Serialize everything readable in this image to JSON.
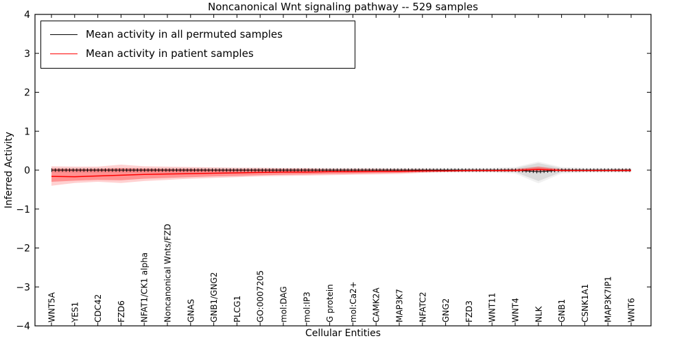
{
  "title": "Noncanonical Wnt signaling pathway -- 529 samples",
  "axes": {
    "xlabel": "Cellular Entities",
    "ylabel": "Inferred Activity",
    "ylim": [
      -4,
      4
    ],
    "yticks": [
      {
        "v": 4,
        "label": "4"
      },
      {
        "v": 3,
        "label": "3"
      },
      {
        "v": 2,
        "label": "2"
      },
      {
        "v": 1,
        "label": "1"
      },
      {
        "v": 0,
        "label": "0"
      },
      {
        "v": -1,
        "label": "−1"
      },
      {
        "v": -2,
        "label": "−2"
      },
      {
        "v": -3,
        "label": "−3"
      },
      {
        "v": -4,
        "label": "−4"
      }
    ]
  },
  "legend": {
    "items": [
      {
        "label": "Mean activity in all permuted samples",
        "color": "#000000"
      },
      {
        "label": "Mean activity in patient samples",
        "color": "#ff0000"
      }
    ]
  },
  "chart_data": {
    "type": "line",
    "title": "Noncanonical Wnt signaling pathway -- 529 samples",
    "xlabel": "Cellular Entities",
    "ylabel": "Inferred Activity",
    "ylim": [
      -4,
      4
    ],
    "grid": false,
    "legend_position": "upper-left",
    "categories": [
      "WNT5A",
      "YES1",
      "CDC42",
      "FZD6",
      "NFAT1/CK1 alpha",
      "Noncanonical Wnts/FZD",
      "GNAS",
      "GNB1/GNG2",
      "PLCG1",
      "GO:0007205",
      "mol:DAG",
      "mol:IP3",
      "G protein",
      "mol:Ca2+",
      "CAMK2A",
      "MAP3K7",
      "NFATC2",
      "GNG2",
      "FZD3",
      "WNT11",
      "WNT4",
      "NLK",
      "GNB1",
      "CSNK1A1",
      "MAP3K7IP1",
      "WNT6"
    ],
    "series": [
      {
        "name": "Mean activity in all permuted samples",
        "color": "#000000",
        "values": [
          0,
          0,
          0,
          0,
          0,
          0,
          0,
          0,
          0,
          0,
          0,
          0,
          0,
          0,
          0,
          0,
          0,
          0,
          0,
          0,
          0,
          -0.04,
          0,
          0,
          0,
          0
        ]
      },
      {
        "name": "Mean activity in patient samples",
        "color": "#ff0000",
        "values": [
          -0.16,
          -0.17,
          -0.15,
          -0.13,
          -0.11,
          -0.1,
          -0.09,
          -0.08,
          -0.07,
          -0.06,
          -0.05,
          -0.05,
          -0.04,
          -0.04,
          -0.03,
          -0.03,
          -0.02,
          -0.02,
          -0.01,
          -0.01,
          -0.01,
          0.02,
          -0.01,
          -0.01,
          -0.01,
          -0.01
        ]
      }
    ],
    "bands": [
      {
        "name": "permuted-range-outer",
        "color": "#bbbbbb",
        "opacity": 0.2,
        "upper": [
          0.06,
          0.06,
          0.06,
          0.06,
          0.06,
          0.06,
          0.06,
          0.06,
          0.06,
          0.06,
          0.06,
          0.06,
          0.06,
          0.06,
          0.06,
          0.06,
          0.06,
          0.06,
          0.06,
          0.06,
          0.08,
          0.22,
          0.08,
          0.06,
          0.06,
          0.06
        ],
        "lower": [
          -0.06,
          -0.06,
          -0.06,
          -0.06,
          -0.06,
          -0.06,
          -0.06,
          -0.06,
          -0.06,
          -0.06,
          -0.06,
          -0.06,
          -0.06,
          -0.06,
          -0.06,
          -0.06,
          -0.06,
          -0.06,
          -0.06,
          -0.06,
          -0.09,
          -0.34,
          -0.09,
          -0.06,
          -0.06,
          -0.06
        ]
      },
      {
        "name": "permuted-range-inner",
        "color": "#aaaaaa",
        "opacity": 0.3,
        "upper": [
          0.04,
          0.04,
          0.04,
          0.04,
          0.04,
          0.04,
          0.04,
          0.04,
          0.04,
          0.04,
          0.04,
          0.04,
          0.04,
          0.04,
          0.04,
          0.04,
          0.04,
          0.04,
          0.04,
          0.04,
          0.05,
          0.18,
          0.05,
          0.04,
          0.04,
          0.04
        ],
        "lower": [
          -0.04,
          -0.04,
          -0.04,
          -0.04,
          -0.04,
          -0.04,
          -0.04,
          -0.04,
          -0.04,
          -0.04,
          -0.04,
          -0.04,
          -0.04,
          -0.04,
          -0.04,
          -0.04,
          -0.04,
          -0.04,
          -0.04,
          -0.04,
          -0.05,
          -0.28,
          -0.05,
          -0.04,
          -0.04,
          -0.04
        ]
      },
      {
        "name": "patient-range-outer",
        "color": "#ff0000",
        "opacity": 0.18,
        "upper": [
          0.1,
          0.09,
          0.09,
          0.14,
          0.1,
          0.09,
          0.08,
          0.07,
          0.06,
          0.06,
          0.05,
          0.05,
          0.04,
          0.04,
          0.04,
          0.03,
          0.03,
          0.02,
          0.02,
          0.02,
          0.03,
          0.1,
          0.03,
          0.02,
          0.02,
          0.03
        ],
        "lower": [
          -0.4,
          -0.33,
          -0.3,
          -0.33,
          -0.28,
          -0.25,
          -0.22,
          -0.2,
          -0.18,
          -0.16,
          -0.15,
          -0.14,
          -0.13,
          -0.12,
          -0.11,
          -0.1,
          -0.07,
          -0.05,
          -0.04,
          -0.04,
          -0.04,
          -0.04,
          -0.03,
          -0.03,
          -0.03,
          -0.04
        ]
      },
      {
        "name": "patient-range-inner",
        "color": "#ff0000",
        "opacity": 0.3,
        "upper": [
          0.04,
          0.03,
          0.03,
          0.05,
          0.04,
          0.03,
          0.03,
          0.02,
          0.02,
          0.02,
          0.02,
          0.02,
          0.01,
          0.01,
          0.01,
          0.01,
          0.01,
          0.01,
          0.01,
          0.01,
          0.02,
          0.08,
          0.02,
          0.01,
          0.01,
          0.02
        ],
        "lower": [
          -0.3,
          -0.27,
          -0.25,
          -0.26,
          -0.22,
          -0.2,
          -0.18,
          -0.16,
          -0.15,
          -0.13,
          -0.12,
          -0.11,
          -0.1,
          -0.09,
          -0.08,
          -0.07,
          -0.05,
          -0.03,
          -0.03,
          -0.03,
          -0.03,
          -0.02,
          -0.02,
          -0.02,
          -0.02,
          -0.02
        ]
      }
    ]
  }
}
